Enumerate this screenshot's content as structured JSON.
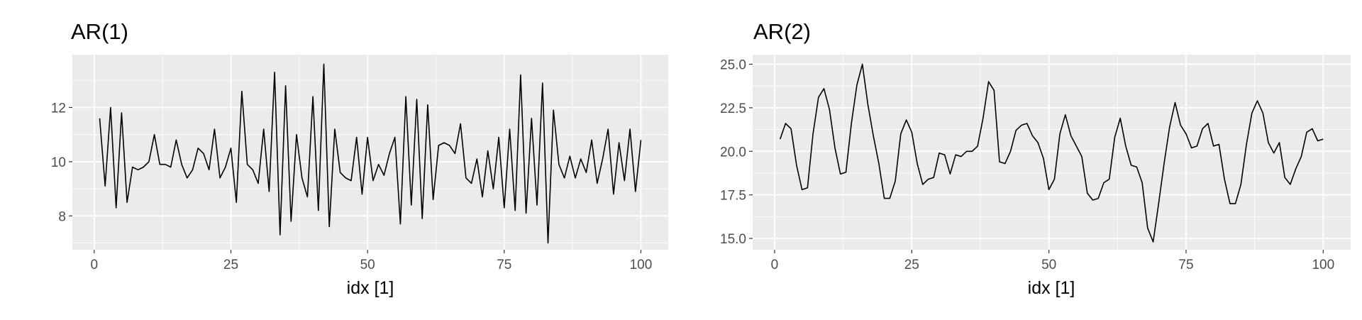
{
  "chart_data": [
    {
      "type": "line",
      "title": "AR(1)",
      "xlabel": "idx [1]",
      "ylabel": "",
      "xlim": [
        -4,
        105
      ],
      "ylim": [
        6.75,
        13.95
      ],
      "xticks": [
        0,
        25,
        50,
        75,
        100
      ],
      "xtick_labels": [
        "0",
        "25",
        "50",
        "75",
        "100"
      ],
      "yticks": [
        8,
        10,
        12
      ],
      "ytick_labels": [
        "8",
        "10",
        "12"
      ],
      "grid": true,
      "panel_background": "#ebebeb",
      "line_color": "#000000",
      "x": [
        1,
        2,
        3,
        4,
        5,
        6,
        7,
        8,
        9,
        10,
        11,
        12,
        13,
        14,
        15,
        16,
        17,
        18,
        19,
        20,
        21,
        22,
        23,
        24,
        25,
        26,
        27,
        28,
        29,
        30,
        31,
        32,
        33,
        34,
        35,
        36,
        37,
        38,
        39,
        40,
        41,
        42,
        43,
        44,
        45,
        46,
        47,
        48,
        49,
        50,
        51,
        52,
        53,
        54,
        55,
        56,
        57,
        58,
        59,
        60,
        61,
        62,
        63,
        64,
        65,
        66,
        67,
        68,
        69,
        70,
        71,
        72,
        73,
        74,
        75,
        76,
        77,
        78,
        79,
        80,
        81,
        82,
        83,
        84,
        85,
        86,
        87,
        88,
        89,
        90,
        91,
        92,
        93,
        94,
        95,
        96,
        97,
        98,
        99,
        100
      ],
      "values": [
        11.6,
        9.1,
        12.0,
        8.3,
        11.8,
        8.5,
        9.8,
        9.7,
        9.8,
        10.0,
        11.0,
        9.9,
        9.9,
        9.8,
        10.8,
        9.9,
        9.4,
        9.7,
        10.5,
        10.3,
        9.7,
        11.2,
        9.4,
        9.8,
        10.5,
        8.5,
        12.6,
        9.9,
        9.7,
        9.2,
        11.2,
        8.9,
        13.3,
        7.3,
        12.8,
        7.8,
        11.0,
        9.4,
        8.7,
        12.4,
        8.2,
        13.6,
        7.6,
        11.2,
        9.6,
        9.4,
        9.3,
        10.9,
        8.8,
        10.9,
        9.3,
        9.9,
        9.5,
        10.3,
        10.9,
        7.7,
        12.4,
        8.4,
        12.3,
        7.9,
        12.1,
        8.6,
        10.6,
        10.7,
        10.6,
        10.3,
        11.4,
        9.4,
        9.2,
        10.1,
        8.7,
        10.4,
        9.0,
        10.9,
        8.3,
        11.2,
        8.2,
        13.2,
        8.1,
        11.6,
        8.4,
        12.9,
        7.0,
        11.9,
        9.9,
        9.4,
        10.2,
        9.4,
        10.1,
        9.6,
        10.8,
        9.2,
        10.1,
        11.2,
        8.8,
        10.7,
        9.3,
        11.2,
        8.9,
        10.8
      ]
    },
    {
      "type": "line",
      "title": "AR(2)",
      "xlabel": "idx [1]",
      "ylabel": "",
      "xlim": [
        -4,
        105
      ],
      "ylim": [
        14.35,
        25.55
      ],
      "xticks": [
        0,
        25,
        50,
        75,
        100
      ],
      "xtick_labels": [
        "0",
        "25",
        "50",
        "75",
        "100"
      ],
      "yticks": [
        15.0,
        17.5,
        20.0,
        22.5,
        25.0
      ],
      "ytick_labels": [
        "15.0",
        "17.5",
        "20.0",
        "22.5",
        "25.0"
      ],
      "grid": true,
      "panel_background": "#ebebeb",
      "line_color": "#000000",
      "x": [
        1,
        2,
        3,
        4,
        5,
        6,
        7,
        8,
        9,
        10,
        11,
        12,
        13,
        14,
        15,
        16,
        17,
        18,
        19,
        20,
        21,
        22,
        23,
        24,
        25,
        26,
        27,
        28,
        29,
        30,
        31,
        32,
        33,
        34,
        35,
        36,
        37,
        38,
        39,
        40,
        41,
        42,
        43,
        44,
        45,
        46,
        47,
        48,
        49,
        50,
        51,
        52,
        53,
        54,
        55,
        56,
        57,
        58,
        59,
        60,
        61,
        62,
        63,
        64,
        65,
        66,
        67,
        68,
        69,
        70,
        71,
        72,
        73,
        74,
        75,
        76,
        77,
        78,
        79,
        80,
        81,
        82,
        83,
        84,
        85,
        86,
        87,
        88,
        89,
        90,
        91,
        92,
        93,
        94,
        95,
        96,
        97,
        98,
        99,
        100
      ],
      "values": [
        20.7,
        21.6,
        21.3,
        19.2,
        17.8,
        17.9,
        21.0,
        23.1,
        23.6,
        22.4,
        20.2,
        18.7,
        18.8,
        21.6,
        23.8,
        25.0,
        22.7,
        20.9,
        19.3,
        17.3,
        17.3,
        18.3,
        21.0,
        21.8,
        21.1,
        19.3,
        18.1,
        18.4,
        18.5,
        19.9,
        19.8,
        18.7,
        19.8,
        19.7,
        20.0,
        20.0,
        20.3,
        21.9,
        24.0,
        23.5,
        19.4,
        19.3,
        20.0,
        21.2,
        21.5,
        21.6,
        20.9,
        20.5,
        19.6,
        17.8,
        18.4,
        21.0,
        22.1,
        20.9,
        20.3,
        19.7,
        17.6,
        17.2,
        17.3,
        18.2,
        18.4,
        20.8,
        21.9,
        20.3,
        19.2,
        19.1,
        18.2,
        15.6,
        14.8,
        17.0,
        19.3,
        21.4,
        22.8,
        21.5,
        21.0,
        20.2,
        20.3,
        21.3,
        21.6,
        20.3,
        20.4,
        18.4,
        17.0,
        17.0,
        18.1,
        20.4,
        22.2,
        22.9,
        22.2,
        20.5,
        19.9,
        20.5,
        18.5,
        18.1,
        19.0,
        19.7,
        21.1,
        21.3,
        20.6,
        20.7
      ]
    }
  ]
}
